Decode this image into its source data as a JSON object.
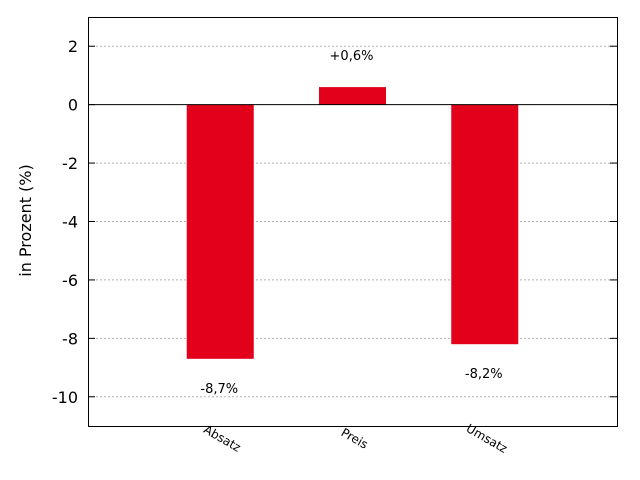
{
  "chart_data": {
    "type": "bar",
    "categories": [
      "Absatz",
      "Preis",
      "Umsatz"
    ],
    "values": [
      -8.7,
      0.6,
      -8.2
    ],
    "data_labels": [
      "-8,7%",
      "+0,6%",
      "-8,2%"
    ],
    "ylabel": "in Prozent (%)",
    "ylim": [
      -11,
      3
    ],
    "yticks": [
      2,
      0,
      -2,
      -4,
      -6,
      -8,
      -10
    ],
    "ytick_labels": [
      "2",
      "0",
      "-2",
      "-4",
      "-6",
      "-8",
      "-10"
    ],
    "grid": true,
    "bar_color": "#e2001a"
  }
}
